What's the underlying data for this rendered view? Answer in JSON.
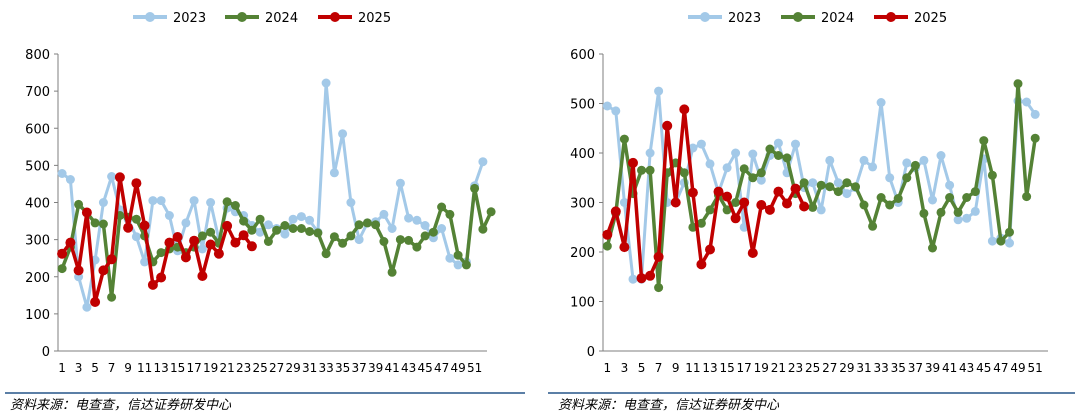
{
  "source_text": "资料来源：电查查，信达证券研发中心",
  "colors": {
    "2023": "#a3c9e8",
    "2024": "#548235",
    "2025": "#c00000",
    "axis": "#7f7f7f",
    "text": "#000000",
    "source_line": "#5b7fa6"
  },
  "chart_data": [
    {
      "type": "line",
      "title": "",
      "xlabel": "",
      "ylabel": "",
      "ylim": [
        0,
        800
      ],
      "yticks": [
        "0",
        "100",
        "200",
        "300",
        "400",
        "500",
        "600",
        "700",
        "800"
      ],
      "xticks": [
        "1",
        "3",
        "5",
        "7",
        "9",
        "11",
        "13",
        "15",
        "17",
        "19",
        "21",
        "23",
        "25",
        "27",
        "29",
        "31",
        "33",
        "35",
        "37",
        "39",
        "41",
        "43",
        "45",
        "47",
        "49",
        "51"
      ],
      "legend_position": "top-center",
      "grid": false,
      "series": [
        {
          "name": "2023",
          "values": [
            478,
            462,
            200,
            118,
            245,
            400,
            470,
            380,
            355,
            308,
            240,
            405,
            405,
            365,
            270,
            345,
            405,
            275,
            400,
            300,
            385,
            375,
            365,
            338,
            320,
            340,
            330,
            315,
            355,
            362,
            352,
            320,
            722,
            480,
            585,
            400,
            300,
            345,
            348,
            368,
            330,
            452,
            358,
            352,
            338,
            305,
            330,
            250,
            232,
            240,
            445,
            510
          ]
        },
        {
          "name": "2024",
          "values": [
            222,
            280,
            395,
            372,
            345,
            342,
            145,
            365,
            360,
            355,
            310,
            240,
            265,
            275,
            280,
            265,
            280,
            310,
            320,
            290,
            402,
            392,
            350,
            325,
            355,
            295,
            325,
            338,
            330,
            330,
            322,
            318,
            262,
            308,
            290,
            310,
            340,
            345,
            340,
            295,
            212,
            300,
            298,
            280,
            310,
            320,
            388,
            368,
            258,
            232,
            438,
            328,
            375
          ]
        },
        {
          "name": "2025",
          "values": [
            262,
            292,
            217,
            373,
            132,
            217,
            247,
            468,
            332,
            452,
            338,
            178,
            198,
            292,
            307,
            252,
            297,
            202,
            287,
            262,
            337,
            292,
            312,
            282
          ]
        }
      ]
    },
    {
      "type": "line",
      "title": "",
      "xlabel": "",
      "ylabel": "",
      "ylim": [
        0,
        600
      ],
      "yticks": [
        "0",
        "100",
        "200",
        "300",
        "400",
        "500",
        "600"
      ],
      "xticks": [
        "1",
        "3",
        "5",
        "7",
        "9",
        "11",
        "13",
        "15",
        "17",
        "19",
        "21",
        "23",
        "25",
        "27",
        "29",
        "31",
        "33",
        "35",
        "37",
        "39",
        "41",
        "43",
        "45",
        "47",
        "49",
        "51"
      ],
      "legend_position": "top-center",
      "grid": false,
      "series": [
        {
          "name": "2023",
          "values": [
            495,
            485,
            300,
            145,
            145,
            400,
            525,
            300,
            300,
            340,
            410,
            418,
            378,
            320,
            370,
            400,
            250,
            398,
            345,
            395,
            420,
            360,
            418,
            330,
            340,
            285,
            385,
            340,
            318,
            330,
            385,
            372,
            502,
            350,
            300,
            380,
            370,
            385,
            305,
            395,
            335,
            265,
            268,
            282,
            388,
            222,
            228,
            218,
            505,
            503,
            478
          ]
        },
        {
          "name": "2024",
          "values": [
            212,
            278,
            428,
            318,
            365,
            365,
            128,
            360,
            380,
            360,
            250,
            258,
            285,
            315,
            285,
            300,
            368,
            350,
            360,
            408,
            395,
            390,
            318,
            340,
            290,
            335,
            332,
            322,
            340,
            332,
            295,
            252,
            310,
            295,
            308,
            350,
            375,
            278,
            208,
            280,
            310,
            280,
            310,
            322,
            425,
            355,
            222,
            240,
            540,
            312,
            430
          ]
        },
        {
          "name": "2025",
          "values": [
            235,
            282,
            210,
            380,
            147,
            152,
            190,
            455,
            300,
            488,
            320,
            175,
            205,
            322,
            312,
            268,
            300,
            198,
            295,
            285,
            322,
            298,
            328,
            292
          ]
        }
      ]
    }
  ]
}
